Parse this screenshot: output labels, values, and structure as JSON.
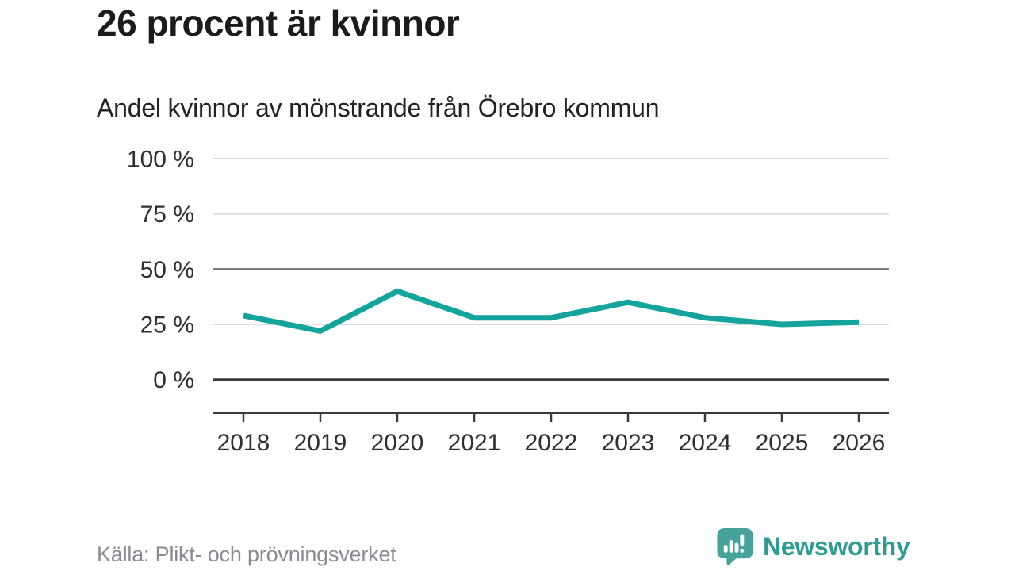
{
  "header": {
    "title": "26 procent är kvinnor",
    "subtitle": "Andel kvinnor av mönstrande från Örebro kommun"
  },
  "chart_data": {
    "type": "line",
    "title": "26 procent är kvinnor",
    "subtitle": "Andel kvinnor av mönstrande från Örebro kommun",
    "categories": [
      "2018",
      "2019",
      "2020",
      "2021",
      "2022",
      "2023",
      "2024",
      "2025",
      "2026"
    ],
    "series": [
      {
        "name": "Andel kvinnor av mönstrande",
        "values": [
          29,
          22,
          40,
          28,
          28,
          35,
          28,
          25,
          26
        ]
      }
    ],
    "xlabel": "",
    "ylabel": "",
    "ylim": [
      0,
      100
    ],
    "yticks": [
      0,
      25,
      50,
      75,
      100
    ],
    "ytick_labels": [
      "0 %",
      "25 %",
      "50 %",
      "75 %",
      "100 %"
    ],
    "unit": "%",
    "grid": true,
    "legend_position": "none",
    "benchmark": 50,
    "colors": {
      "line": "#12A49D",
      "grid": "#DCDCDC",
      "benchmark": "#71717A",
      "axis": "#3A3A3E"
    }
  },
  "footer": {
    "source": "Källa: Plikt- och prövningsverket",
    "brand": "Newsworthy",
    "brand_icon": "bar-chart-speech-bubble",
    "brand_icon_color": "#45A39B",
    "brand_text_color": "#2E9C93"
  }
}
